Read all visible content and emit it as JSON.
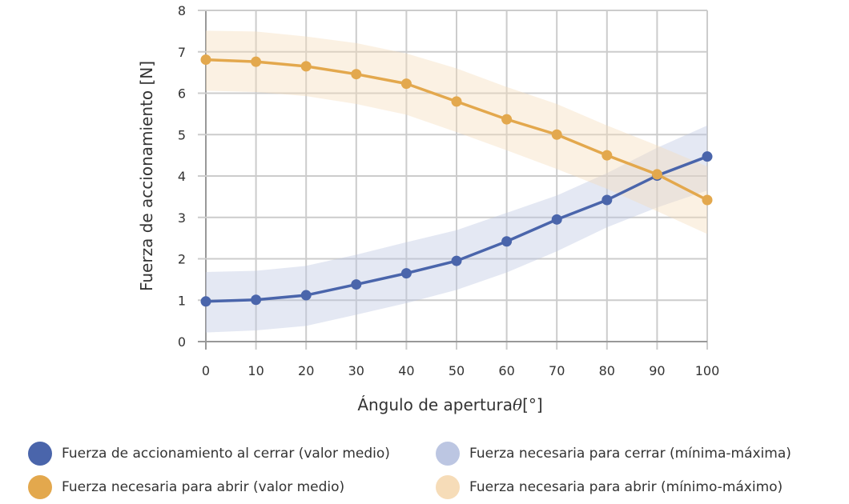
{
  "chart_data": {
    "type": "line",
    "xlabel": "Ángulo de apertura",
    "xlabel_symbol": "θ",
    "xlabel_unit": "[°]",
    "ylabel": "Fuerza de accionamiento [N]",
    "xlim": [
      0,
      100
    ],
    "ylim": [
      0,
      8
    ],
    "x_ticks": [
      0,
      10,
      20,
      30,
      40,
      50,
      60,
      70,
      80,
      90,
      100
    ],
    "y_ticks": [
      0,
      1,
      2,
      3,
      4,
      5,
      6,
      7,
      8
    ],
    "grid": true,
    "legend_position": "bottom",
    "x": [
      0,
      10,
      20,
      30,
      40,
      50,
      60,
      70,
      80,
      90,
      100
    ],
    "bands": [
      {
        "name": "Fuerza necesaria para cerrar (mínima-máxima)",
        "color": "#bcc6e2",
        "lower": [
          0.22,
          0.27,
          0.38,
          0.65,
          0.93,
          1.25,
          1.67,
          2.18,
          2.76,
          3.24,
          3.65
        ],
        "upper": [
          1.68,
          1.71,
          1.83,
          2.1,
          2.4,
          2.69,
          3.11,
          3.53,
          4.07,
          4.68,
          5.22
        ]
      },
      {
        "name": "Fuerza necesaria para abrir (mínimo-máximo)",
        "color": "#f6dcb8",
        "lower": [
          6.06,
          6.03,
          5.93,
          5.74,
          5.48,
          5.06,
          4.62,
          4.17,
          3.69,
          3.15,
          2.6
        ],
        "upper": [
          7.51,
          7.49,
          7.37,
          7.21,
          6.96,
          6.6,
          6.15,
          5.74,
          5.22,
          4.74,
          4.23
        ]
      }
    ],
    "series": [
      {
        "name": "Fuerza de accionamiento al cerrar (valor medio)",
        "color": "#4a65ab",
        "values": [
          0.97,
          1.01,
          1.12,
          1.38,
          1.65,
          1.95,
          2.42,
          2.95,
          3.42,
          4.01,
          4.47
        ]
      },
      {
        "name": "Fuerza necesaria para abrir (valor medio)",
        "color": "#e3a84d",
        "values": [
          6.81,
          6.76,
          6.65,
          6.46,
          6.23,
          5.8,
          5.37,
          5.0,
          4.5,
          4.04,
          3.42
        ]
      }
    ]
  }
}
